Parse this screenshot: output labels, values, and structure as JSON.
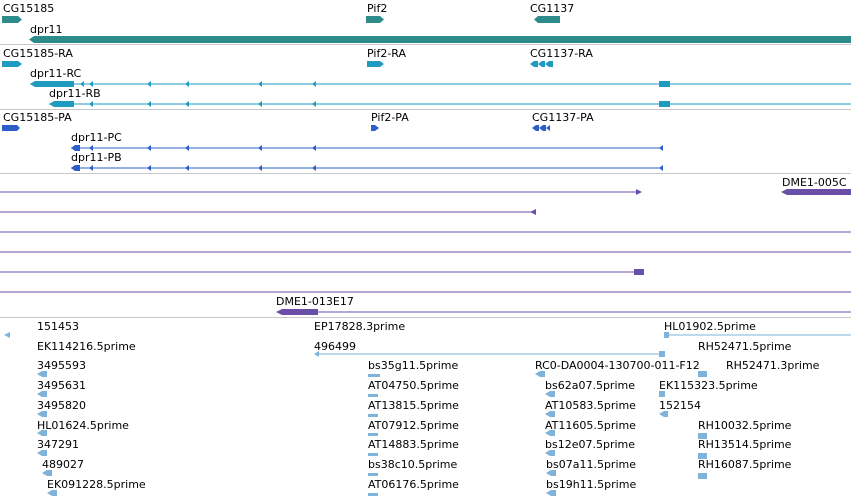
{
  "colors": {
    "gene": "#2e8b8b",
    "mrna": "#1e9bbf",
    "cds": "#2c5fc8",
    "cdna": "#6a4fa8",
    "est": "#7fb3d9",
    "separator": "#c8c8c8"
  },
  "tracks": {
    "genes": {
      "labels": [
        "CG15185",
        "Pif2",
        "CG1137",
        "dpr11"
      ]
    },
    "transcripts": {
      "labels": [
        "CG15185-RA",
        "Pif2-RA",
        "CG1137-RA",
        "dpr11-RC",
        "dpr11-RB"
      ]
    },
    "cds": {
      "labels": [
        "CG15185-PA",
        "Pif2-PA",
        "CG1137-PA",
        "dpr11-PC",
        "dpr11-PB"
      ]
    },
    "cdna": {
      "labels": [
        "DME1-005C",
        "DME1-013E17"
      ]
    },
    "est": {
      "labels": [
        "151453",
        "EP17828.3prime",
        "HL01902.5prime",
        "EK114216.5prime",
        "496499",
        "RH52471.5prime",
        "3495593",
        "bs35g11.5prime",
        "RC0-DA0004-130700-011-F12",
        "RH52471.3prime",
        "3495631",
        "AT04750.5prime",
        "bs62a07.5prime",
        "EK115323.5prime",
        "3495820",
        "AT13815.5prime",
        "AT10583.5prime",
        "152154",
        "HL01624.5prime",
        "AT07912.5prime",
        "AT11605.5prime",
        "RH10032.5prime",
        "347291",
        "AT14883.5prime",
        "bs12e07.5prime",
        "RH13514.5prime",
        "489027",
        "bs38c10.5prime",
        "bs07a11.5prime",
        "RH16087.5prime",
        "EK091228.5prime",
        "AT06176.5prime",
        "bs19h11.5prime"
      ]
    }
  }
}
